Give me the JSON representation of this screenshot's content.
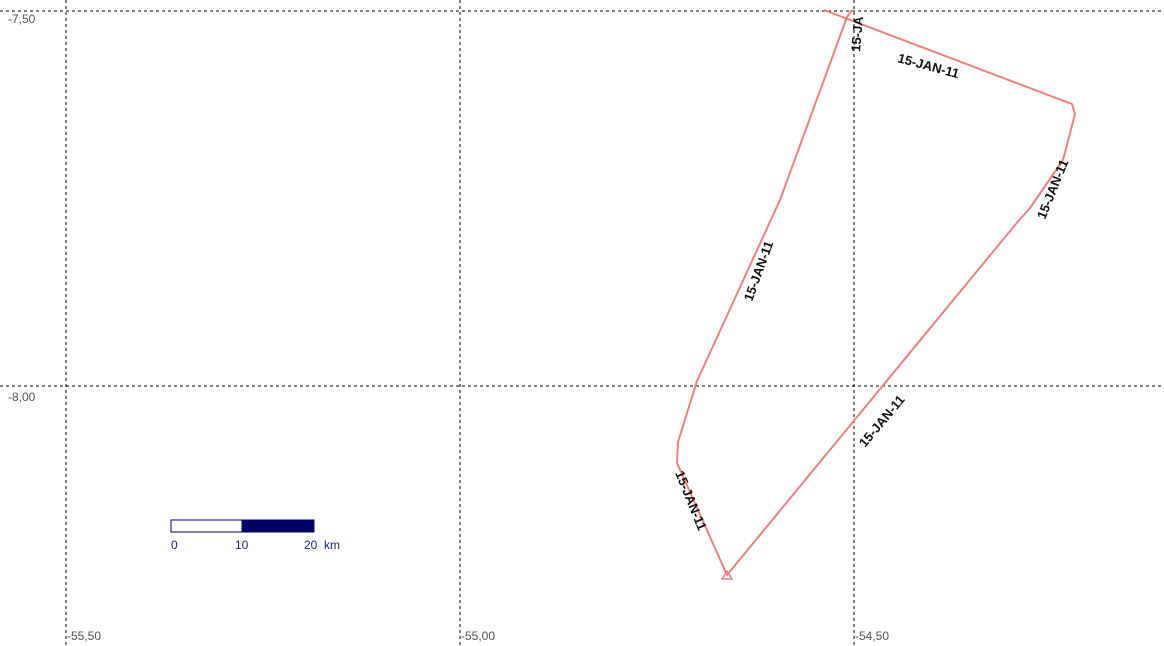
{
  "map": {
    "latitude_labels": [
      "-7,50",
      "-8,00"
    ],
    "longitude_labels": [
      "-55,50",
      "-55,00",
      "-54,50"
    ],
    "track": {
      "color": "#f08080",
      "point_labels": [
        "15-JAN-11",
        "15-JAN-11",
        "15-JAN-11",
        "15-JAN-11",
        "15-JAN-11",
        "15-JAN-11"
      ],
      "partial_label": "15-JA",
      "start_marker": "triangle-icon"
    },
    "scale_bar": {
      "ticks": [
        "0",
        "10",
        "20"
      ],
      "unit": "km",
      "colors": {
        "fill_dark": "#000066",
        "fill_light": "#ffffff"
      }
    }
  }
}
